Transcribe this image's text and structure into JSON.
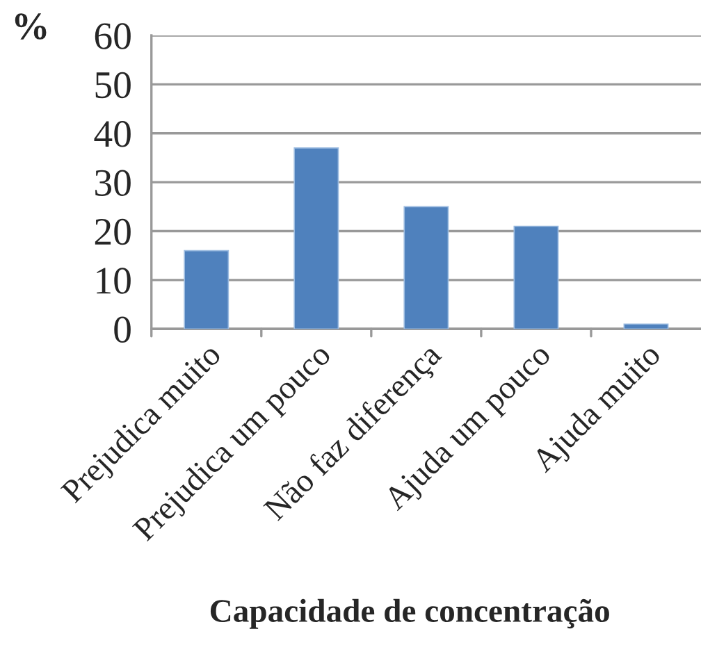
{
  "chart_data": {
    "type": "bar",
    "xlabel": "Capacidade de concentração",
    "ylabel": "%",
    "categories": [
      "Prejudica muito",
      "Prejudica um pouco",
      "Não faz diferença",
      "Ajuda um pouco",
      "Ajuda muito"
    ],
    "values": [
      16,
      37,
      25,
      21,
      1
    ],
    "color": "#4f81bd",
    "ylim": [
      0,
      60
    ],
    "yticks": [
      0,
      10,
      20,
      30,
      40,
      50,
      60
    ],
    "grid": "y"
  }
}
